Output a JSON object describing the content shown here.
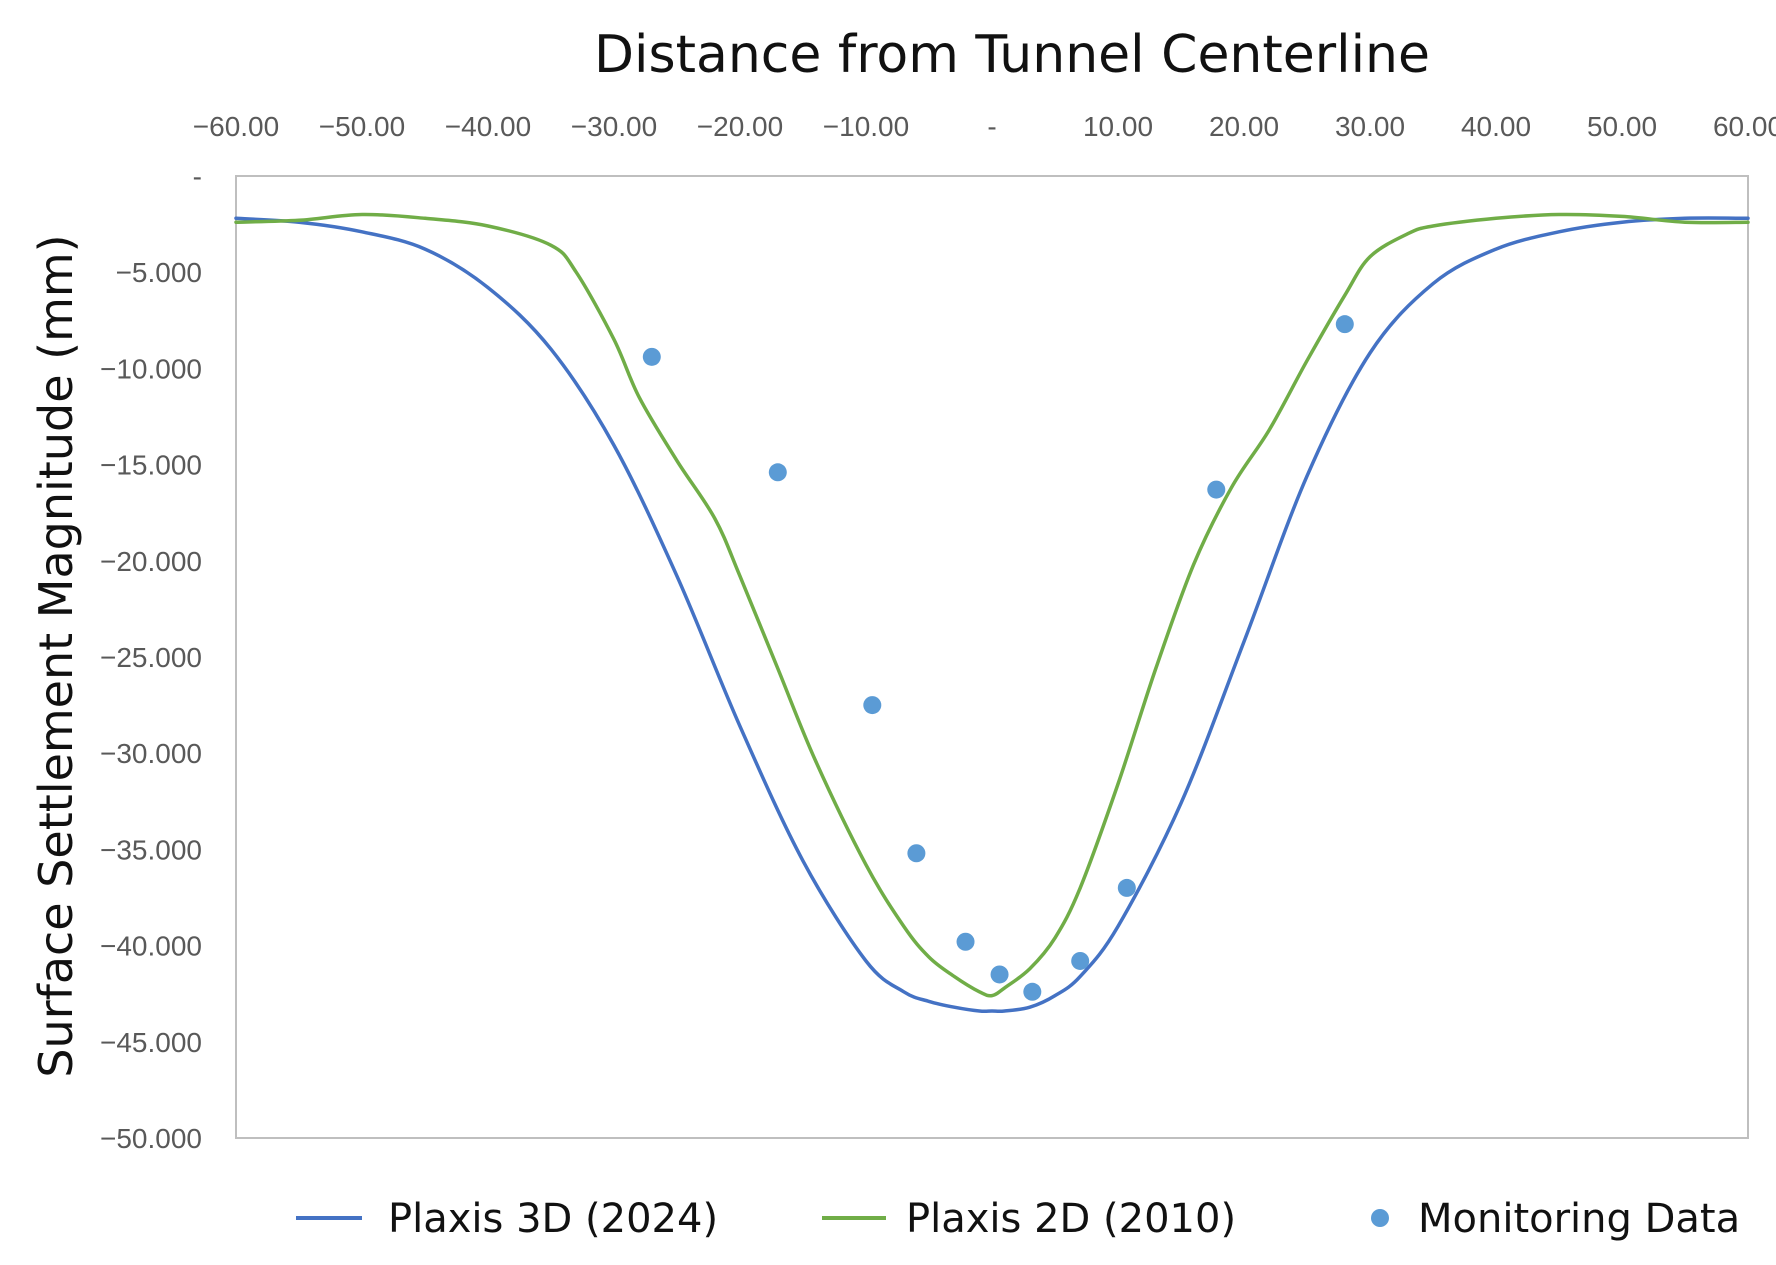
{
  "chart_data": {
    "type": "line",
    "title": "",
    "xlabel": "Distance from Tunnel Centerline",
    "ylabel": "Surface Settlement Magnitude (mm)",
    "xlim": [
      -60,
      60
    ],
    "ylim": [
      -50,
      0
    ],
    "x_axis_position": "top",
    "grid": false,
    "legend_position": "bottom",
    "x_ticks": [
      {
        "value": -60,
        "label": "−60.00"
      },
      {
        "value": -50,
        "label": "−50.00"
      },
      {
        "value": -40,
        "label": "−40.00"
      },
      {
        "value": -30,
        "label": "−30.00"
      },
      {
        "value": -20,
        "label": "−20.00"
      },
      {
        "value": -10,
        "label": "−10.00"
      },
      {
        "value": 0,
        "label": "-"
      },
      {
        "value": 10,
        "label": "10.00"
      },
      {
        "value": 20,
        "label": "20.00"
      },
      {
        "value": 30,
        "label": "30.00"
      },
      {
        "value": 40,
        "label": "40.00"
      },
      {
        "value": 50,
        "label": "50.00"
      },
      {
        "value": 60,
        "label": "60.00"
      }
    ],
    "y_ticks": [
      {
        "value": 0,
        "label": "-"
      },
      {
        "value": -5,
        "label": "−5.000"
      },
      {
        "value": -10,
        "label": "−10.000"
      },
      {
        "value": -15,
        "label": "−15.000"
      },
      {
        "value": -20,
        "label": "−20.000"
      },
      {
        "value": -25,
        "label": "−25.000"
      },
      {
        "value": -30,
        "label": "−30.000"
      },
      {
        "value": -35,
        "label": "−35.000"
      },
      {
        "value": -40,
        "label": "−40.000"
      },
      {
        "value": -45,
        "label": "−45.000"
      },
      {
        "value": -50,
        "label": "−50.000"
      }
    ],
    "series": [
      {
        "name": "Plaxis 3D (2024)",
        "type": "line",
        "color": "#4472C4",
        "x": [
          -60,
          -55,
          -50,
          -45,
          -40,
          -35,
          -30,
          -25,
          -20,
          -15,
          -10,
          -7,
          -5,
          -3,
          -1,
          0,
          1,
          3,
          5,
          7,
          10,
          15,
          20,
          25,
          30,
          35,
          40,
          45,
          50,
          55,
          60
        ],
        "y": [
          -2.2,
          -2.4,
          -2.9,
          -3.8,
          -5.8,
          -9.0,
          -14.0,
          -20.8,
          -28.6,
          -35.6,
          -40.8,
          -42.4,
          -42.9,
          -43.2,
          -43.4,
          -43.4,
          -43.4,
          -43.2,
          -42.6,
          -41.6,
          -39.0,
          -32.6,
          -24.2,
          -15.6,
          -9.2,
          -5.6,
          -3.8,
          -2.9,
          -2.4,
          -2.2,
          -2.2
        ]
      },
      {
        "name": "Plaxis 2D (2010)",
        "type": "line",
        "color": "#70AD47",
        "x": [
          -60,
          -55,
          -50,
          -45,
          -40,
          -35,
          -33,
          -30,
          -28,
          -25,
          -22,
          -20,
          -17,
          -14,
          -10,
          -7,
          -5,
          -3,
          -1,
          0,
          1,
          3,
          5,
          7,
          10,
          13,
          16,
          19,
          22,
          25,
          28,
          30,
          33,
          35,
          40,
          45,
          50,
          55,
          60
        ],
        "y": [
          -2.4,
          -2.3,
          -2.0,
          -2.2,
          -2.6,
          -3.6,
          -5.0,
          -8.5,
          -11.5,
          -14.8,
          -17.8,
          -20.8,
          -25.6,
          -30.4,
          -35.8,
          -39.0,
          -40.6,
          -41.6,
          -42.4,
          -42.6,
          -42.2,
          -41.2,
          -39.6,
          -37.0,
          -31.6,
          -25.6,
          -20.2,
          -16.2,
          -13.2,
          -9.6,
          -6.2,
          -4.2,
          -3.0,
          -2.6,
          -2.2,
          -2.0,
          -2.1,
          -2.4,
          -2.4
        ]
      },
      {
        "name": "Monitoring Data",
        "type": "scatter",
        "color": "#5B9BD5",
        "x": [
          -27,
          -17,
          -9.5,
          -6,
          -2.1,
          0.6,
          3.2,
          7,
          10.7,
          17.8,
          28
        ],
        "y": [
          -9.4,
          -15.4,
          -27.5,
          -35.2,
          -39.8,
          -41.5,
          -42.4,
          -40.8,
          -37.0,
          -16.3,
          -7.7
        ]
      }
    ]
  }
}
